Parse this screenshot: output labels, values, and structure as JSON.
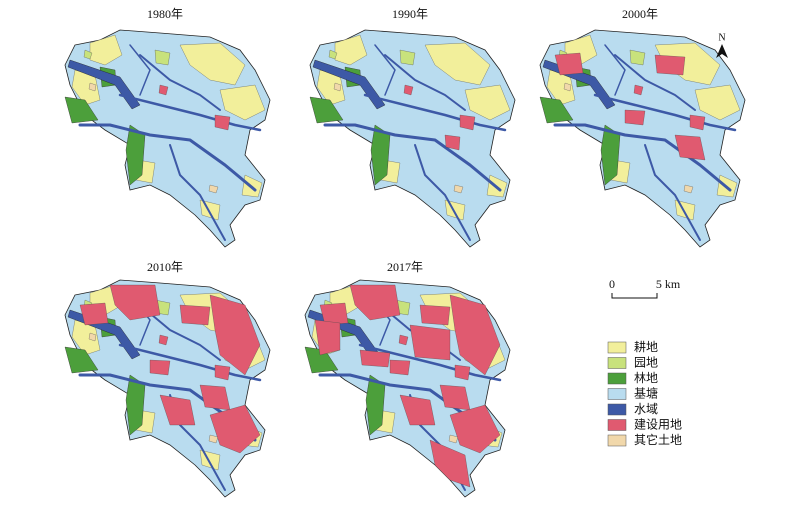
{
  "maps": [
    {
      "title": "1980年"
    },
    {
      "title": "1990年"
    },
    {
      "title": "2000年"
    },
    {
      "title": "2010年"
    },
    {
      "title": "2017年"
    }
  ],
  "north": "N",
  "scale": {
    "start": "0",
    "end": "5 km"
  },
  "legend": [
    {
      "label": "耕地",
      "color": "#f2ef9b"
    },
    {
      "label": "园地",
      "color": "#c8e27c"
    },
    {
      "label": "林地",
      "color": "#4c9f3b"
    },
    {
      "label": "基塘",
      "color": "#b9dcef"
    },
    {
      "label": "水域",
      "color": "#3d59a6"
    },
    {
      "label": "建设用地",
      "color": "#e05a70"
    },
    {
      "label": "其它土地",
      "color": "#f1d8ab"
    }
  ]
}
